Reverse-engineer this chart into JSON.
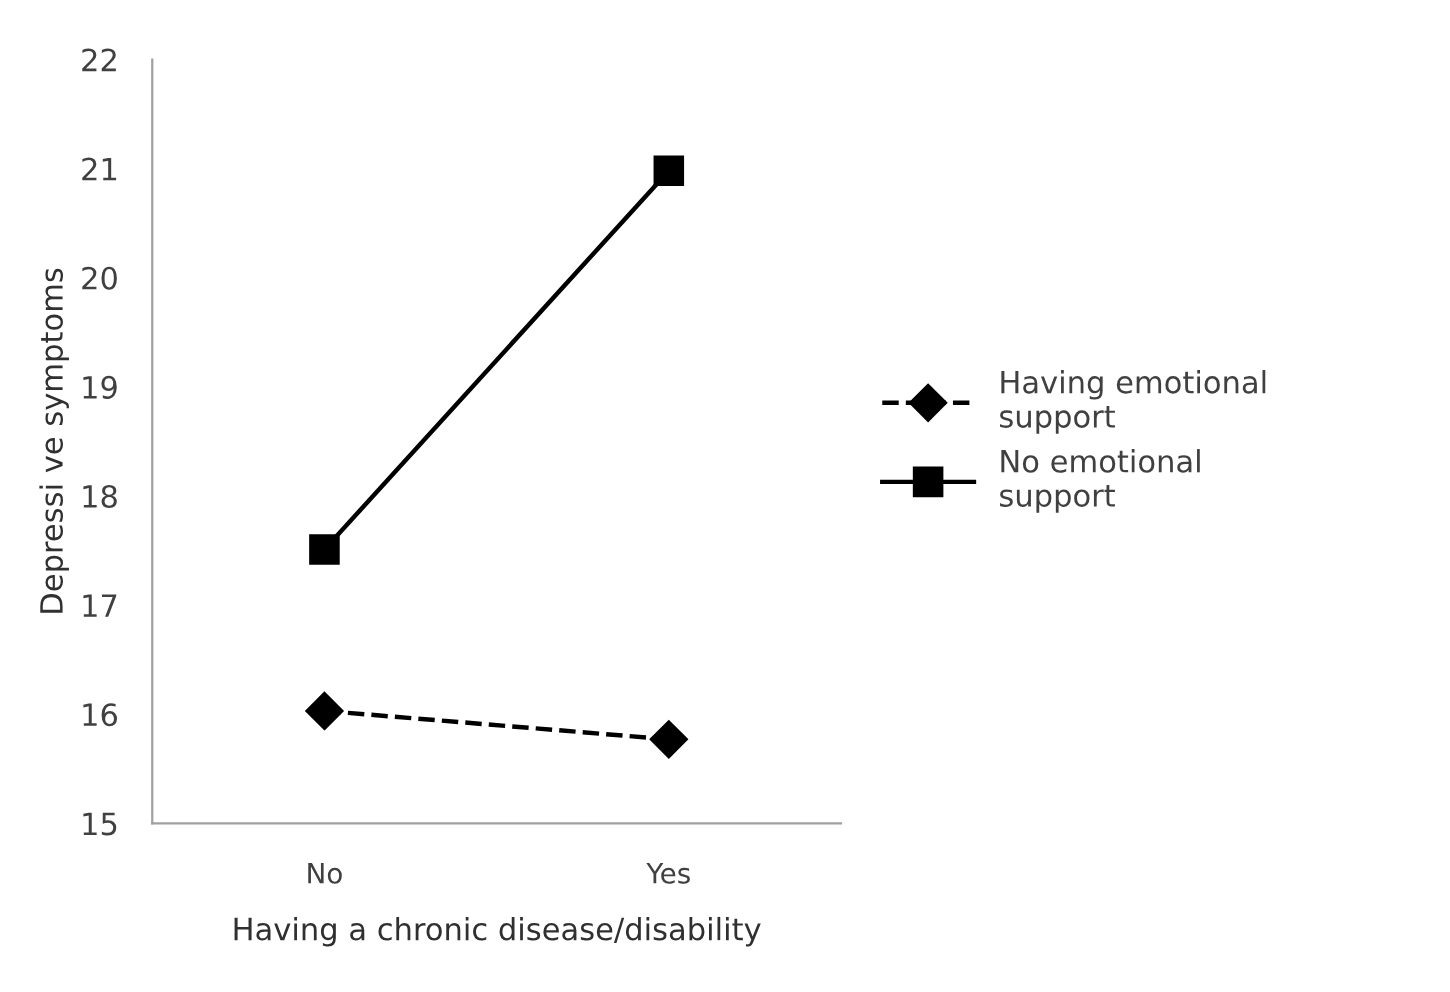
{
  "chart_data": {
    "type": "line",
    "xlabel": "Having a chronic disease/disability",
    "ylabel": "Depressi ve symptoms",
    "categories": [
      "No",
      "Yes"
    ],
    "series": [
      {
        "name": "Having emotional\nsupport",
        "color": "#000000",
        "values": [
          16.03,
          15.77
        ],
        "marker": "diamond",
        "line_style": "dashed"
      },
      {
        "name": "No emotional\nsupport",
        "color": "#000000",
        "values": [
          17.51,
          20.98
        ],
        "marker": "square",
        "line_style": "solid"
      }
    ],
    "ylim": [
      15,
      22
    ],
    "yticks": [
      15,
      16,
      17,
      18,
      19,
      20,
      21,
      22
    ],
    "grid": false,
    "legend": "right"
  }
}
